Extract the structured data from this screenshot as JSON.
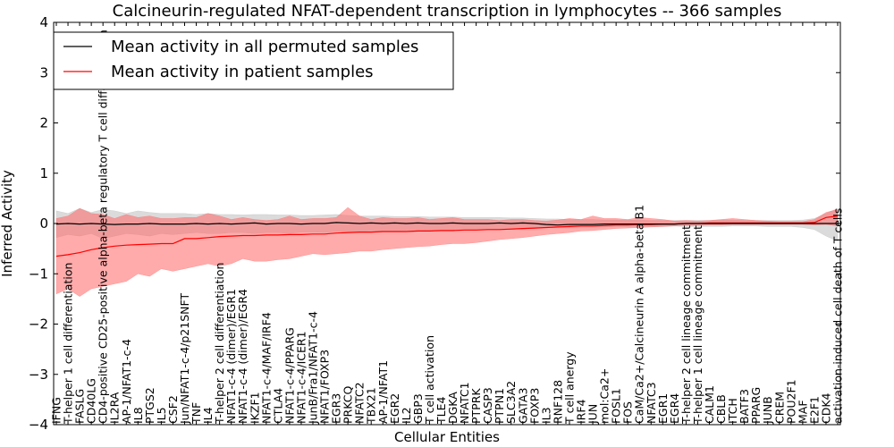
{
  "chart_data": {
    "type": "line",
    "title": "Calcineurin-regulated NFAT-dependent transcription in lymphocytes -- 366 samples",
    "xlabel": "Cellular Entities",
    "ylabel": "Inferred Activity",
    "ylim": [
      -4,
      4
    ],
    "yticks": [
      -4,
      -3,
      -2,
      -1,
      0,
      1,
      2,
      3,
      4
    ],
    "ytick_labels": [
      "−4",
      "−3",
      "−2",
      "−1",
      "0",
      "1",
      "2",
      "3",
      "4"
    ],
    "grid": false,
    "legend_position": "top-left",
    "categories": [
      "IFNG",
      "T-helper 1 cell differentiation",
      "FASLG",
      "CD40LG",
      "CD4-positive CD25-positive alpha-beta regulatory T cell differentiation",
      "IL2RA",
      "AP-1/NFAT1-c-4",
      "IL8",
      "PTGS2",
      "IL5",
      "CSF2",
      "Jun/NFAT1-c-4/p21SNFT",
      "TNF",
      "IL4",
      "T-helper 2 cell differentiation",
      "NFAT1-c-4 (dimer)/EGR1",
      "NFAT1-c-4 (dimer)/EGR4",
      "IKZF1",
      "NFAT1-c-4/MAF/IRF4",
      "CTLA4",
      "NFAT1-c-4/PPARG",
      "NFAT1-c-4/ICER1",
      "JunB/Fra1/NFAT1-c-4",
      "NFAT1/FOXP3",
      "EGR3",
      "PRKCQ",
      "NFATC2",
      "TBX21",
      "AP-1/NFAT1",
      "EGR2",
      "IL2",
      "GBP3",
      "T cell activation",
      "TLE4",
      "DGKA",
      "NFATC1",
      "PTPRK",
      "CASP3",
      "PTPN1",
      "SLC3A2",
      "GATA3",
      "FOXP3",
      "IL3",
      "RNF128",
      "T cell anergy",
      "IRF4",
      "JUN",
      "mol:Ca2+",
      "FOSL1",
      "FOS",
      "CaM/Ca2+/Calcineurin A alpha-beta B1",
      "NFATC3",
      "EGR1",
      "EGR4",
      "T-helper 2 cell lineage commitment",
      "T-helper 1 cell lineage commitment",
      "CALM1",
      "CBLB",
      "ITCH",
      "BATF3",
      "PPARG",
      "JUNB",
      "CREM",
      "POU2F1",
      "MAF",
      "E2F1",
      "CDK4",
      "activation-induced cell death of T cells"
    ],
    "series": [
      {
        "name": "Mean activity in all permuted samples",
        "color": "#000000",
        "values": [
          -0.01,
          0.0,
          -0.01,
          0.0,
          -0.01,
          -0.02,
          -0.01,
          -0.01,
          0.0,
          -0.01,
          -0.01,
          -0.01,
          0.0,
          -0.01,
          0.0,
          -0.01,
          0.0,
          0.01,
          -0.01,
          0.0,
          0.0,
          -0.01,
          0.0,
          0.0,
          0.02,
          0.01,
          0.0,
          0.01,
          0.0,
          0.01,
          0.0,
          0.01,
          0.0,
          0.0,
          0.01,
          0.0,
          0.0,
          0.0,
          0.01,
          0.0,
          0.01,
          0.0,
          -0.02,
          -0.03,
          -0.02,
          -0.02,
          -0.02,
          -0.01,
          -0.01,
          -0.01,
          -0.01,
          -0.01,
          -0.01,
          -0.01,
          0.0,
          0.0,
          0.0,
          0.0,
          0.0,
          0.0,
          0.0,
          0.0,
          0.0,
          0.0,
          0.0,
          0.0,
          0.0,
          0.0
        ],
        "lower": [
          -0.28,
          -0.22,
          -0.25,
          -0.2,
          -0.3,
          -0.25,
          -0.2,
          -0.22,
          -0.25,
          -0.2,
          -0.22,
          -0.2,
          -0.18,
          -0.2,
          -0.2,
          -0.18,
          -0.18,
          -0.2,
          -0.18,
          -0.18,
          -0.2,
          -0.17,
          -0.17,
          -0.18,
          -0.16,
          -0.16,
          -0.16,
          -0.15,
          -0.15,
          -0.15,
          -0.14,
          -0.14,
          -0.14,
          -0.14,
          -0.13,
          -0.13,
          -0.13,
          -0.12,
          -0.12,
          -0.12,
          -0.11,
          -0.1,
          -0.08,
          -0.08,
          -0.08,
          -0.07,
          -0.07,
          -0.07,
          -0.06,
          -0.06,
          -0.06,
          -0.06,
          -0.06,
          -0.05,
          -0.06,
          -0.06,
          -0.06,
          -0.06,
          -0.05,
          -0.05,
          -0.05,
          -0.06,
          -0.06,
          -0.06,
          -0.08,
          -0.12,
          -0.25,
          -0.35
        ],
        "upper": [
          0.25,
          0.2,
          0.3,
          0.22,
          0.28,
          0.25,
          0.2,
          0.25,
          0.22,
          0.2,
          0.2,
          0.2,
          0.18,
          0.2,
          0.18,
          0.18,
          0.17,
          0.18,
          0.18,
          0.17,
          0.17,
          0.16,
          0.16,
          0.17,
          0.18,
          0.16,
          0.15,
          0.15,
          0.15,
          0.14,
          0.14,
          0.14,
          0.13,
          0.13,
          0.13,
          0.12,
          0.12,
          0.12,
          0.12,
          0.11,
          0.11,
          0.1,
          0.09,
          0.09,
          0.08,
          0.08,
          0.08,
          0.07,
          0.07,
          0.07,
          0.07,
          0.06,
          0.06,
          0.06,
          0.06,
          0.06,
          0.06,
          0.07,
          0.07,
          0.06,
          0.06,
          0.06,
          0.06,
          0.06,
          0.07,
          0.1,
          0.2,
          0.3
        ]
      },
      {
        "name": "Mean activity in patient samples",
        "color": "#ff0000",
        "band_color": "#ff6666",
        "values": [
          -0.65,
          -0.62,
          -0.58,
          -0.52,
          -0.48,
          -0.45,
          -0.43,
          -0.42,
          -0.41,
          -0.4,
          -0.4,
          -0.3,
          -0.3,
          -0.28,
          -0.26,
          -0.25,
          -0.24,
          -0.24,
          -0.23,
          -0.23,
          -0.22,
          -0.22,
          -0.21,
          -0.21,
          -0.19,
          -0.18,
          -0.17,
          -0.17,
          -0.16,
          -0.16,
          -0.16,
          -0.15,
          -0.15,
          -0.14,
          -0.14,
          -0.13,
          -0.13,
          -0.12,
          -0.12,
          -0.11,
          -0.1,
          -0.09,
          -0.08,
          -0.07,
          -0.06,
          -0.05,
          -0.05,
          -0.04,
          -0.03,
          -0.03,
          -0.02,
          -0.02,
          -0.01,
          -0.01,
          0.0,
          0.0,
          0.01,
          0.01,
          0.01,
          0.01,
          0.01,
          0.01,
          0.01,
          0.01,
          0.01,
          0.02,
          0.12,
          0.15
        ],
        "lower": [
          -1.4,
          -1.3,
          -1.45,
          -1.3,
          -1.25,
          -1.2,
          -1.15,
          -1.0,
          -1.05,
          -0.9,
          -0.95,
          -0.9,
          -0.85,
          -0.8,
          -0.85,
          -0.8,
          -0.7,
          -0.75,
          -0.75,
          -0.72,
          -0.7,
          -0.65,
          -0.6,
          -0.62,
          -0.6,
          -0.58,
          -0.55,
          -0.55,
          -0.52,
          -0.5,
          -0.48,
          -0.46,
          -0.45,
          -0.42,
          -0.4,
          -0.4,
          -0.38,
          -0.35,
          -0.32,
          -0.3,
          -0.28,
          -0.25,
          -0.22,
          -0.2,
          -0.18,
          -0.15,
          -0.14,
          -0.12,
          -0.1,
          -0.09,
          -0.08,
          -0.07,
          -0.06,
          -0.05,
          -0.04,
          -0.04,
          -0.03,
          -0.03,
          -0.02,
          -0.02,
          -0.02,
          -0.02,
          -0.02,
          -0.02,
          -0.02,
          -0.03,
          -0.02,
          -0.05
        ],
        "upper": [
          0.1,
          0.15,
          0.3,
          0.2,
          0.18,
          0.1,
          0.18,
          0.12,
          0.15,
          0.1,
          0.1,
          0.12,
          0.12,
          0.2,
          0.15,
          0.08,
          0.12,
          0.08,
          0.06,
          0.08,
          0.15,
          0.08,
          0.1,
          0.1,
          0.12,
          0.32,
          0.15,
          0.08,
          0.12,
          0.1,
          0.1,
          0.12,
          0.08,
          0.1,
          0.12,
          0.08,
          0.08,
          0.08,
          0.06,
          0.08,
          0.08,
          0.06,
          0.05,
          0.07,
          0.1,
          0.08,
          0.15,
          0.1,
          0.1,
          0.08,
          0.12,
          0.1,
          0.08,
          0.05,
          0.06,
          0.05,
          0.06,
          0.08,
          0.1,
          0.08,
          0.06,
          0.05,
          0.04,
          0.04,
          0.04,
          0.08,
          0.22,
          0.28
        ]
      }
    ]
  }
}
